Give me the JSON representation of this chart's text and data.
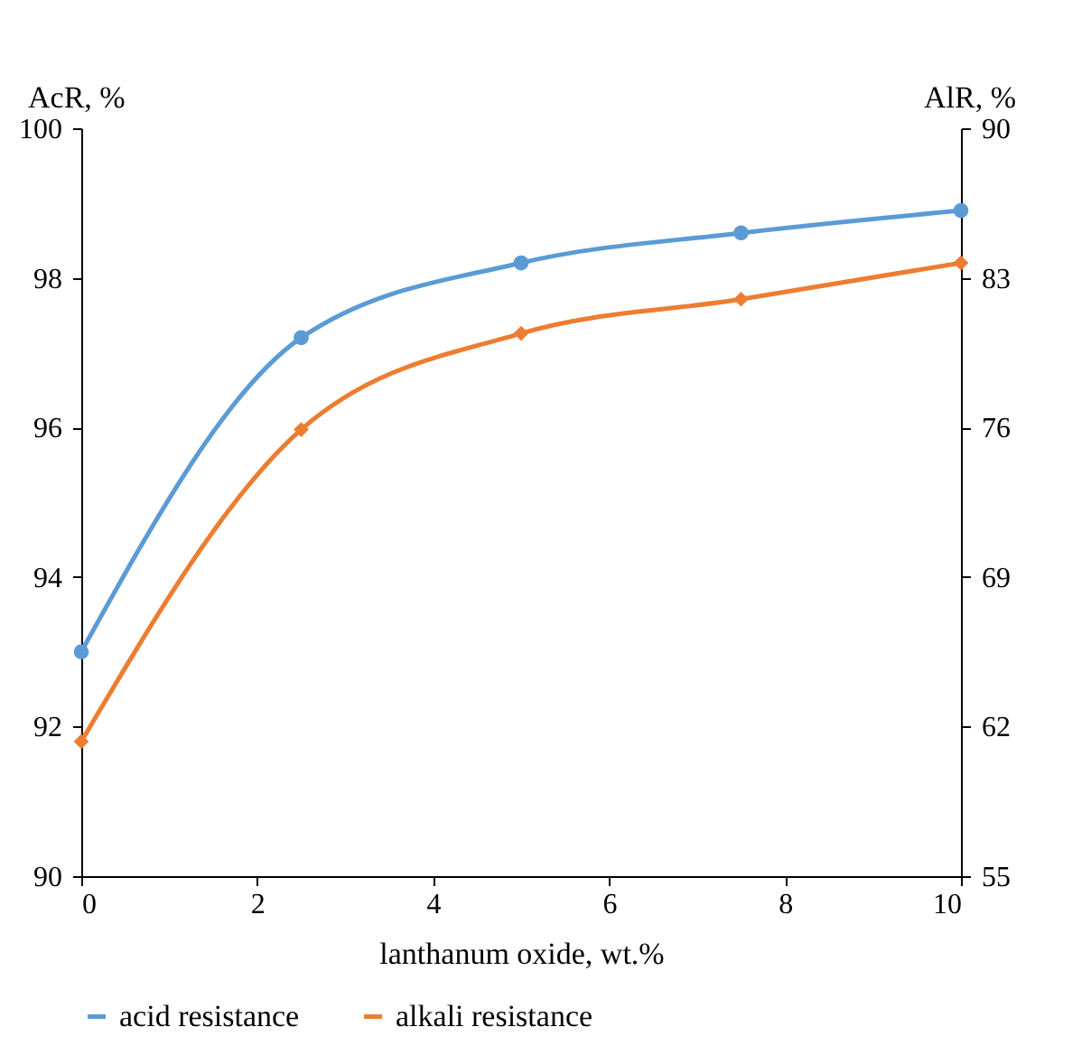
{
  "chart_data": {
    "type": "line",
    "xlabel": "lanthanum  oxide, wt.%",
    "ylabel": "AcR, %",
    "y2label": "AlR, %",
    "x": [
      0,
      2.5,
      5,
      7.5,
      10
    ],
    "series": [
      {
        "name": "acid resistance",
        "color": "#5b9bd5",
        "marker": "circle",
        "values": [
          93.0,
          97.2,
          98.2,
          98.6,
          98.9
        ]
      },
      {
        "name": "alkali resistance",
        "color": "#ed7d31",
        "marker": "diamond",
        "axis": "y2",
        "values": [
          61.3,
          75.9,
          80.4,
          82.0,
          83.7
        ]
      }
    ],
    "xlim": [
      0,
      10
    ],
    "xticks": [
      0,
      2,
      4,
      6,
      8,
      10
    ],
    "ylim": [
      90,
      100
    ],
    "yticks": [
      90,
      92,
      94,
      96,
      98,
      100
    ],
    "y2lim": [
      55,
      90
    ],
    "y2ticks": [
      55,
      62,
      69,
      76,
      83,
      90
    ],
    "grid": false,
    "legend": "bottom",
    "line_style": "solid"
  }
}
